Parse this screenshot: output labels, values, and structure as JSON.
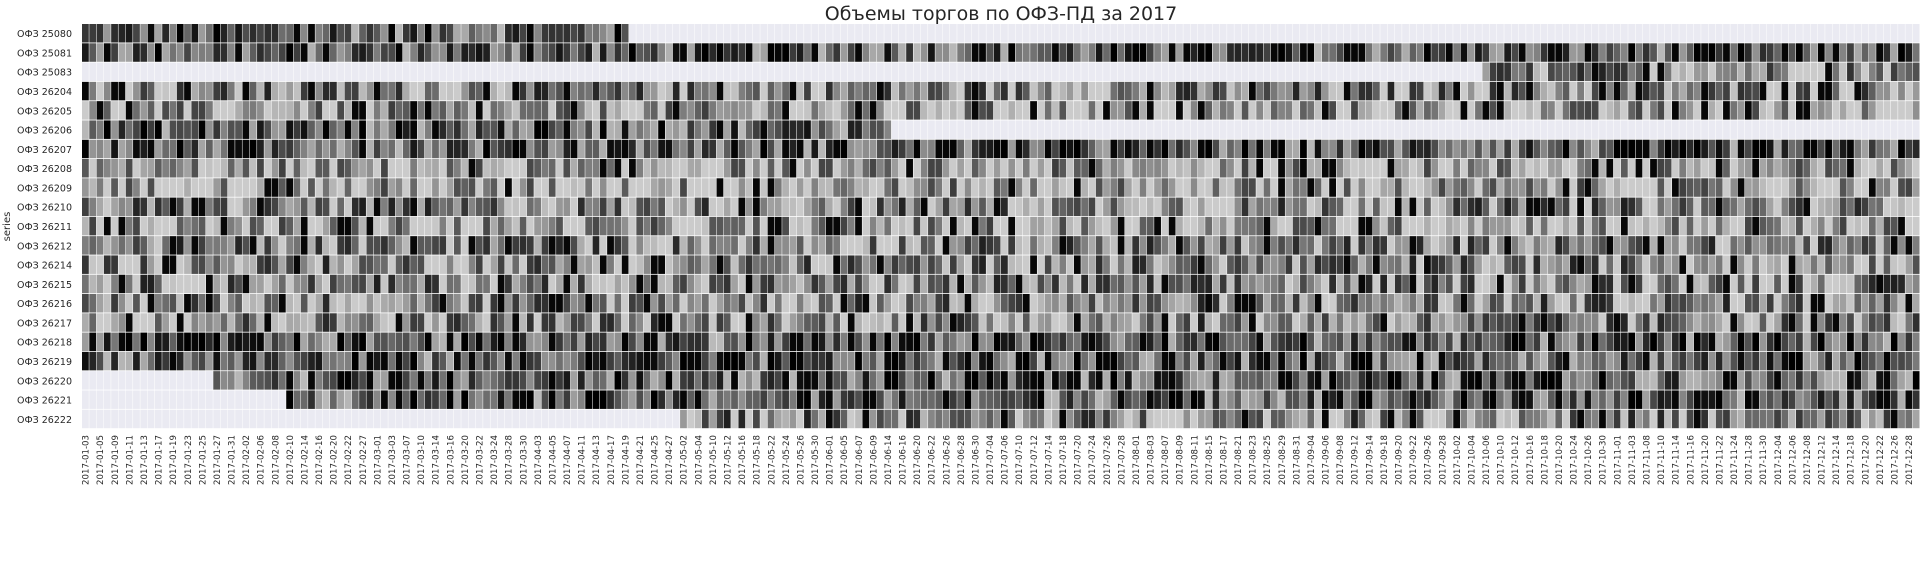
{
  "chart_data": {
    "type": "heatmap",
    "title": "Объемы торгов по ОФЗ-ПД за 2017",
    "xlabel": "",
    "ylabel": "series",
    "colormap": "grayscale, darker = larger volume",
    "empty_cell_color": "#eaeaf2",
    "grid": false,
    "colorbar": false,
    "x_tick_labels": [
      "2017-01-03",
      "2017-01-05",
      "2017-01-09",
      "2017-01-11",
      "2017-01-13",
      "2017-01-17",
      "2017-01-19",
      "2017-01-23",
      "2017-01-25",
      "2017-01-27",
      "2017-01-31",
      "2017-02-02",
      "2017-02-06",
      "2017-02-08",
      "2017-02-10",
      "2017-02-14",
      "2017-02-16",
      "2017-02-20",
      "2017-02-22",
      "2017-02-27",
      "2017-03-01",
      "2017-03-03",
      "2017-03-07",
      "2017-03-10",
      "2017-03-14",
      "2017-03-16",
      "2017-03-20",
      "2017-03-22",
      "2017-03-24",
      "2017-03-28",
      "2017-03-30",
      "2017-04-03",
      "2017-04-05",
      "2017-04-07",
      "2017-04-11",
      "2017-04-13",
      "2017-04-17",
      "2017-04-19",
      "2017-04-21",
      "2017-04-25",
      "2017-04-27",
      "2017-05-02",
      "2017-05-04",
      "2017-05-10",
      "2017-05-12",
      "2017-05-16",
      "2017-05-18",
      "2017-05-22",
      "2017-05-24",
      "2017-05-26",
      "2017-05-30",
      "2017-06-01",
      "2017-06-05",
      "2017-06-07",
      "2017-06-09",
      "2017-06-14",
      "2017-06-16",
      "2017-06-20",
      "2017-06-22",
      "2017-06-26",
      "2017-06-28",
      "2017-06-30",
      "2017-07-04",
      "2017-07-06",
      "2017-07-10",
      "2017-07-12",
      "2017-07-14",
      "2017-07-18",
      "2017-07-20",
      "2017-07-24",
      "2017-07-26",
      "2017-07-28",
      "2017-08-01",
      "2017-08-03",
      "2017-08-07",
      "2017-08-09",
      "2017-08-11",
      "2017-08-15",
      "2017-08-17",
      "2017-08-21",
      "2017-08-23",
      "2017-08-25",
      "2017-08-29",
      "2017-08-31",
      "2017-09-04",
      "2017-09-06",
      "2017-09-08",
      "2017-09-12",
      "2017-09-14",
      "2017-09-18",
      "2017-09-20",
      "2017-09-22",
      "2017-09-26",
      "2017-09-28",
      "2017-10-02",
      "2017-10-04",
      "2017-10-06",
      "2017-10-10",
      "2017-10-12",
      "2017-10-16",
      "2017-10-18",
      "2017-10-20",
      "2017-10-24",
      "2017-10-26",
      "2017-10-30",
      "2017-11-01",
      "2017-11-03",
      "2017-11-08",
      "2017-11-10",
      "2017-11-14",
      "2017-11-16",
      "2017-11-20",
      "2017-11-22",
      "2017-11-24",
      "2017-11-28",
      "2017-11-30",
      "2017-12-04",
      "2017-12-06",
      "2017-12-08",
      "2017-12-12",
      "2017-12-14",
      "2017-12-18",
      "2017-12-20",
      "2017-12-22",
      "2017-12-26",
      "2017-12-28"
    ],
    "series": [
      {
        "name": "ОФЗ 25080",
        "first_date": "2017-01-03",
        "last_date": "2017-04-19",
        "level": "high"
      },
      {
        "name": "ОФЗ 25081",
        "first_date": "2017-01-03",
        "last_date": "2017-12-29",
        "level": "high"
      },
      {
        "name": "ОФЗ 25083",
        "first_date": "2017-10-06",
        "last_date": "2017-12-29",
        "level": "medium"
      },
      {
        "name": "ОФЗ 26204",
        "first_date": "2017-01-03",
        "last_date": "2017-12-29",
        "level": "medium"
      },
      {
        "name": "ОФЗ 26205",
        "first_date": "2017-01-03",
        "last_date": "2017-12-29",
        "level": "low"
      },
      {
        "name": "ОФЗ 26206",
        "first_date": "2017-01-03",
        "last_date": "2017-06-14",
        "level": "high"
      },
      {
        "name": "ОФЗ 26207",
        "first_date": "2017-01-03",
        "last_date": "2017-12-29",
        "level": "high"
      },
      {
        "name": "ОФЗ 26208",
        "first_date": "2017-01-03",
        "last_date": "2017-12-29",
        "level": "low"
      },
      {
        "name": "ОФЗ 26209",
        "first_date": "2017-01-03",
        "last_date": "2017-12-29",
        "level": "low"
      },
      {
        "name": "ОФЗ 26210",
        "first_date": "2017-01-03",
        "last_date": "2017-12-29",
        "level": "medium"
      },
      {
        "name": "ОФЗ 26211",
        "first_date": "2017-01-03",
        "last_date": "2017-12-29",
        "level": "low"
      },
      {
        "name": "ОФЗ 26212",
        "first_date": "2017-01-03",
        "last_date": "2017-12-29",
        "level": "medium"
      },
      {
        "name": "ОФЗ 26214",
        "first_date": "2017-01-03",
        "last_date": "2017-12-29",
        "level": "medium"
      },
      {
        "name": "ОФЗ 26215",
        "first_date": "2017-01-03",
        "last_date": "2017-12-29",
        "level": "medium"
      },
      {
        "name": "ОФЗ 26216",
        "first_date": "2017-01-03",
        "last_date": "2017-12-29",
        "level": "medium"
      },
      {
        "name": "ОФЗ 26217",
        "first_date": "2017-01-03",
        "last_date": "2017-12-29",
        "level": "medium"
      },
      {
        "name": "ОФЗ 26218",
        "first_date": "2017-01-03",
        "last_date": "2017-12-29",
        "level": "high"
      },
      {
        "name": "ОФЗ 26219",
        "first_date": "2017-01-03",
        "last_date": "2017-12-29",
        "level": "high"
      },
      {
        "name": "ОФЗ 26220",
        "first_date": "2017-01-27",
        "last_date": "2017-12-29",
        "level": "high"
      },
      {
        "name": "ОФЗ 26221",
        "first_date": "2017-02-10",
        "last_date": "2017-12-29",
        "level": "high"
      },
      {
        "name": "ОФЗ 26222",
        "first_date": "2017-05-02",
        "last_date": "2017-12-29",
        "level": "medium"
      }
    ]
  }
}
